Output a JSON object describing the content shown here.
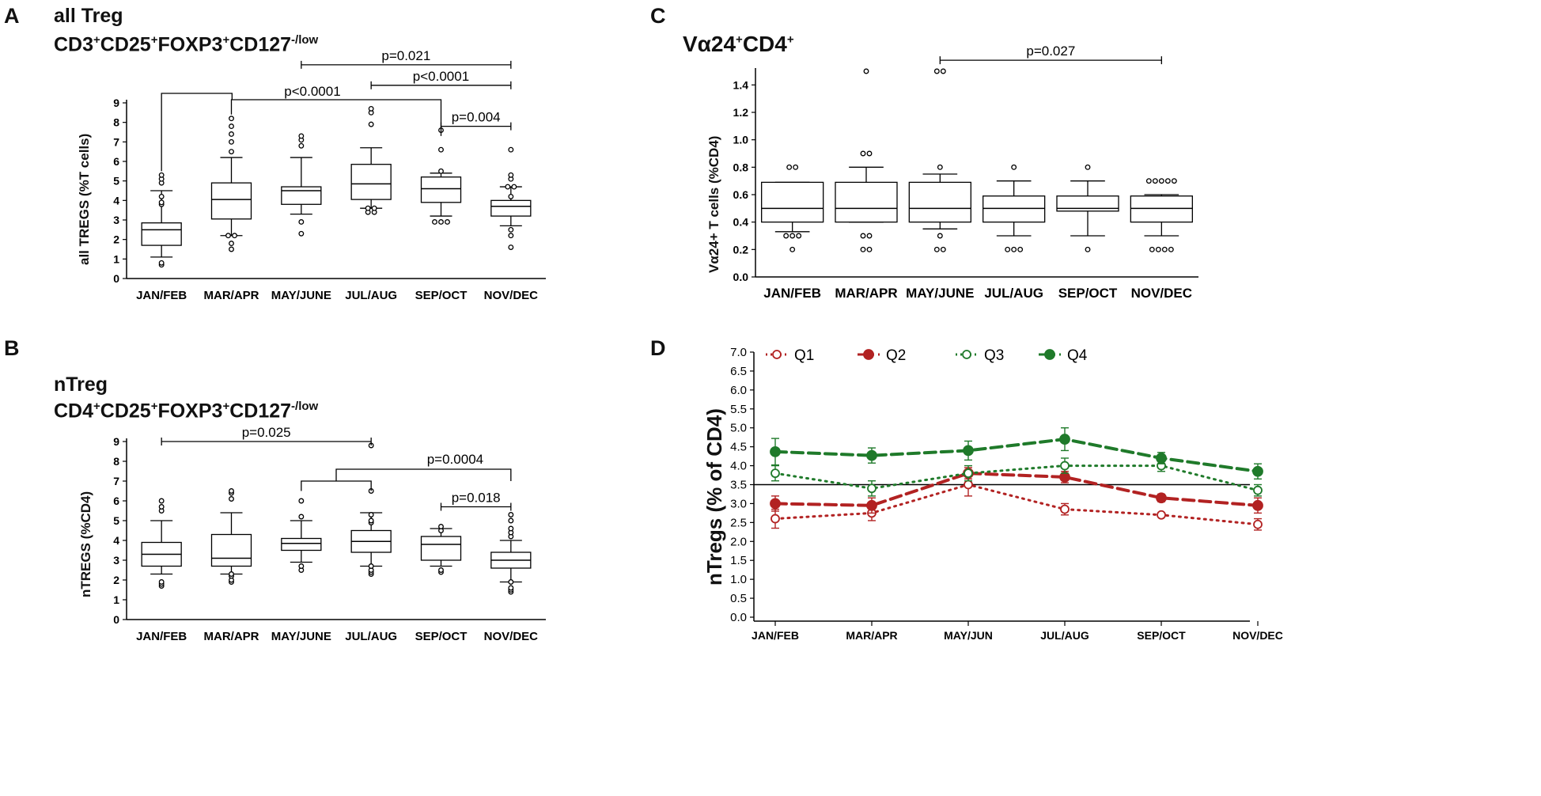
{
  "figure": {
    "panels": [
      "A",
      "B",
      "C",
      "D"
    ]
  },
  "chart_data": [
    {
      "id": "A",
      "type": "boxplot",
      "letter": "A",
      "title": "all Treg",
      "subtitle_base": "CD3",
      "subtitle_parts": [
        "CD3",
        "+",
        "CD25",
        "+",
        "FOXP3",
        "+",
        "CD127",
        "-/low"
      ],
      "ylabel": "all TREGS (%T cells)",
      "ylim": [
        0,
        9
      ],
      "yticks": [
        "0",
        "1",
        "2",
        "3",
        "4",
        "5",
        "6",
        "7",
        "8",
        "9"
      ],
      "categories": [
        "JAN/FEB",
        "MAR/APR",
        "MAY/JUNE",
        "JUL/AUG",
        "SEP/OCT",
        "NOV/DEC"
      ],
      "boxes": [
        {
          "whislo": 1.1,
          "q1": 1.7,
          "med": 2.5,
          "q3": 2.85,
          "whishi": 4.5,
          "outliers": [
            0.7,
            0.8,
            3.8,
            3.9,
            4.2,
            4.9,
            5.1,
            5.3
          ]
        },
        {
          "whislo": 2.2,
          "q1": 3.05,
          "med": 4.05,
          "q3": 4.9,
          "whishi": 6.2,
          "outliers": [
            1.5,
            1.8,
            2.2,
            2.2,
            6.5,
            7.0,
            7.4,
            7.8,
            8.2
          ]
        },
        {
          "whislo": 3.3,
          "q1": 3.8,
          "med": 4.5,
          "q3": 4.7,
          "whishi": 6.2,
          "outliers": [
            2.3,
            2.9,
            6.8,
            7.1,
            7.3
          ]
        },
        {
          "whislo": 3.6,
          "q1": 4.05,
          "med": 4.85,
          "q3": 5.85,
          "whishi": 6.7,
          "outliers": [
            3.4,
            3.4,
            3.6,
            3.6,
            8.5,
            8.7,
            7.9
          ]
        },
        {
          "whislo": 3.2,
          "q1": 3.9,
          "med": 4.6,
          "q3": 5.2,
          "whishi": 5.4,
          "outliers": [
            2.9,
            2.9,
            2.9,
            5.5,
            6.6,
            7.6
          ]
        },
        {
          "whislo": 2.7,
          "q1": 3.2,
          "med": 3.7,
          "q3": 4.0,
          "whishi": 4.7,
          "outliers": [
            1.6,
            2.2,
            2.5,
            4.2,
            4.7,
            4.7,
            5.1,
            5.3,
            6.6
          ]
        }
      ],
      "brackets": [
        {
          "label": "p=0.021",
          "from": 2,
          "to": 5,
          "y": 10.95
        },
        {
          "label": "p<0.0001",
          "from": 3,
          "to": 5,
          "y": 9.9
        },
        {
          "label": "p=0.004",
          "from": 4,
          "to": 5,
          "y": 7.8
        }
      ],
      "group_bracket": {
        "label": "p<0.0001",
        "left_from": 0,
        "left_to": 1,
        "right": 4
      }
    },
    {
      "id": "B",
      "type": "boxplot",
      "letter": "B",
      "title": "nTreg",
      "subtitle_parts": [
        "CD4",
        "+",
        "CD25",
        "+",
        "FOXP3",
        "+",
        "CD127",
        "-/low"
      ],
      "ylabel": "nTREGS (%CD4)",
      "ylim": [
        0,
        9
      ],
      "yticks": [
        "0",
        "1",
        "2",
        "3",
        "4",
        "5",
        "6",
        "7",
        "8",
        "9"
      ],
      "categories": [
        "JAN/FEB",
        "MAR/APR",
        "MAY/JUNE",
        "JUL/AUG",
        "SEP/OCT",
        "NOV/DEC"
      ],
      "boxes": [
        {
          "whislo": 2.3,
          "q1": 2.7,
          "med": 3.3,
          "q3": 3.9,
          "whishi": 5.0,
          "outliers": [
            1.7,
            1.8,
            1.9,
            5.5,
            5.7,
            6.0
          ]
        },
        {
          "whislo": 2.3,
          "q1": 2.7,
          "med": 3.1,
          "q3": 4.3,
          "whishi": 5.4,
          "outliers": [
            1.9,
            2.0,
            2.2,
            2.3,
            6.1,
            6.4,
            6.5
          ]
        },
        {
          "whislo": 2.9,
          "q1": 3.5,
          "med": 3.85,
          "q3": 4.1,
          "whishi": 5.0,
          "outliers": [
            2.5,
            2.7,
            5.2,
            6.0
          ]
        },
        {
          "whislo": 2.7,
          "q1": 3.4,
          "med": 3.95,
          "q3": 4.5,
          "whishi": 5.4,
          "outliers": [
            2.3,
            2.4,
            2.5,
            2.7,
            4.9,
            5.0,
            5.3,
            6.5,
            8.8
          ]
        },
        {
          "whislo": 2.7,
          "q1": 3.0,
          "med": 3.8,
          "q3": 4.2,
          "whishi": 4.6,
          "outliers": [
            2.4,
            2.5,
            4.5,
            4.7
          ]
        },
        {
          "whislo": 1.9,
          "q1": 2.6,
          "med": 3.0,
          "q3": 3.4,
          "whishi": 4.0,
          "outliers": [
            1.4,
            1.5,
            1.6,
            1.9,
            4.2,
            4.4,
            4.6,
            5.0,
            5.3
          ]
        }
      ],
      "brackets": [
        {
          "label": "p=0.025",
          "from": 0,
          "to": 3,
          "y": 9.0
        },
        {
          "label": "p=0.018",
          "from": 4,
          "to": 5,
          "y": 5.7
        }
      ],
      "group_bracket": {
        "label": "p=0.0004",
        "left_from": 2,
        "left_to": 3,
        "right": 5
      }
    },
    {
      "id": "C",
      "type": "boxplot",
      "letter": "C",
      "title_parts": [
        "Vα24",
        "+",
        "CD4",
        "+"
      ],
      "ylabel": "Vα24+ T cells (%CD4)",
      "ylim": [
        0,
        1.5
      ],
      "yticks": [
        "0.0",
        "0.2",
        "0.4",
        "0.6",
        "0.8",
        "1.0",
        "1.2",
        "1.4"
      ],
      "categories": [
        "JAN/FEB",
        "MAR/APR",
        "MAY/JUNE",
        "JUL/AUG",
        "SEP/OCT",
        "NOV/DEC"
      ],
      "boxes": [
        {
          "whislo": 0.33,
          "q1": 0.4,
          "med": 0.5,
          "q3": 0.69,
          "whishi": 0.69,
          "outliers": [
            0.2,
            0.3,
            0.3,
            0.3,
            0.8,
            0.8
          ]
        },
        {
          "whislo": 0.4,
          "q1": 0.4,
          "med": 0.5,
          "q3": 0.69,
          "whishi": 0.8,
          "outliers": [
            0.2,
            0.2,
            0.3,
            0.3,
            0.9,
            0.9,
            1.5
          ]
        },
        {
          "whislo": 0.35,
          "q1": 0.4,
          "med": 0.5,
          "q3": 0.69,
          "whishi": 0.75,
          "outliers": [
            0.2,
            0.2,
            0.3,
            0.8,
            1.5,
            1.5
          ]
        },
        {
          "whislo": 0.3,
          "q1": 0.4,
          "med": 0.5,
          "q3": 0.59,
          "whishi": 0.7,
          "outliers": [
            0.2,
            0.2,
            0.2,
            0.8
          ]
        },
        {
          "whislo": 0.3,
          "q1": 0.48,
          "med": 0.5,
          "q3": 0.59,
          "whishi": 0.7,
          "outliers": [
            0.2,
            0.8
          ]
        },
        {
          "whislo": 0.3,
          "q1": 0.4,
          "med": 0.5,
          "q3": 0.59,
          "whishi": 0.6,
          "outliers": [
            0.2,
            0.2,
            0.2,
            0.2,
            0.7,
            0.7,
            0.7,
            0.7,
            0.7
          ]
        }
      ],
      "brackets": [
        {
          "label": "p=0.027",
          "from": 2,
          "to": 5,
          "y": 1.58
        }
      ]
    },
    {
      "id": "D",
      "type": "line",
      "letter": "D",
      "ylabel": "nTregs (% of CD4)",
      "ylim": [
        0,
        7
      ],
      "yticks": [
        "0.0",
        "0.5",
        "1.0",
        "1.5",
        "2.0",
        "2.5",
        "3.0",
        "3.5",
        "4.0",
        "4.5",
        "5.0",
        "5.5",
        "6.0",
        "6.5",
        "7.0"
      ],
      "categories": [
        "JAN/FEB",
        "MAR/APR",
        "MAY/JUN",
        "JUL/AUG",
        "SEP/OCT",
        "NOV/DEC"
      ],
      "reference_line": 3.5,
      "series": [
        {
          "name": "Q1",
          "color": "#b22222",
          "style": "dotted",
          "filled": false,
          "values": [
            2.6,
            2.75,
            3.5,
            2.85,
            2.7,
            2.45
          ],
          "err": [
            0.25,
            0.2,
            0.3,
            0.15,
            0.05,
            0.15
          ]
        },
        {
          "name": "Q2",
          "color": "#b22222",
          "style": "dashed",
          "filled": true,
          "values": [
            3.0,
            2.95,
            3.8,
            3.7,
            3.15,
            2.95
          ],
          "err": [
            0.2,
            0.2,
            0.15,
            0.15,
            0.1,
            0.2
          ]
        },
        {
          "name": "Q3",
          "color": "#1f7a2a",
          "style": "dotted",
          "filled": false,
          "values": [
            3.8,
            3.4,
            3.8,
            4.0,
            4.0,
            3.35
          ],
          "err": [
            0.2,
            0.2,
            0.2,
            0.2,
            0.15,
            0.15
          ]
        },
        {
          "name": "Q4",
          "color": "#1f7a2a",
          "style": "dashed",
          "filled": true,
          "values": [
            4.37,
            4.27,
            4.4,
            4.7,
            4.2,
            3.85
          ],
          "err": [
            0.35,
            0.2,
            0.25,
            0.3,
            0.15,
            0.2
          ]
        }
      ]
    }
  ]
}
